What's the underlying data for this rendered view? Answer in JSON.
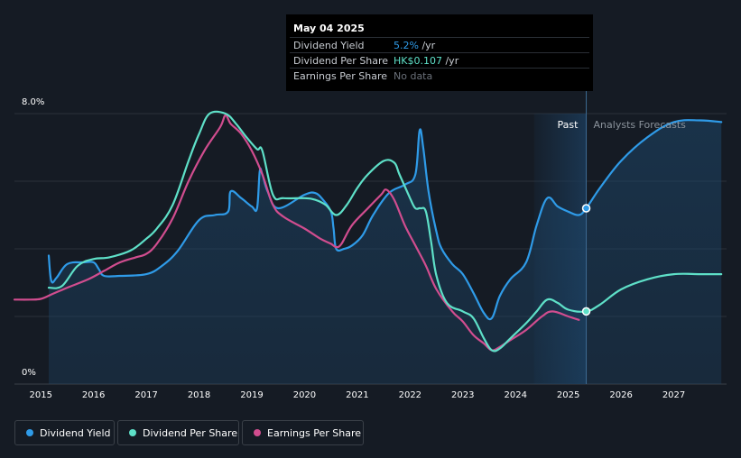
{
  "tooltip": {
    "date": "May 04 2025",
    "rows": [
      {
        "label": "Dividend Yield",
        "value": "5.2%",
        "unit": " /yr",
        "color": "#2f9be8"
      },
      {
        "label": "Dividend Per Share",
        "value": "HK$0.107",
        "unit": " /yr",
        "color": "#5ee0c8"
      },
      {
        "label": "Earnings Per Share",
        "value": "No data",
        "unit": "",
        "color": "#6b717a"
      }
    ]
  },
  "regions": {
    "past": "Past",
    "forecast": "Analysts Forecasts"
  },
  "legend": [
    {
      "label": "Dividend Yield",
      "color": "#2f9be8"
    },
    {
      "label": "Dividend Per Share",
      "color": "#5ee0c8"
    },
    {
      "label": "Earnings Per Share",
      "color": "#d14d8f"
    }
  ],
  "chart_data": {
    "type": "line",
    "ylim": [
      0,
      8.0
    ],
    "y_tick_labels": [
      "8.0%",
      "0%"
    ],
    "x_tick_labels": [
      "2015",
      "2016",
      "2017",
      "2018",
      "2019",
      "2020",
      "2021",
      "2022",
      "2023",
      "2024",
      "2025",
      "2026",
      "2027"
    ],
    "xlim": [
      2014.5,
      2028.0
    ],
    "past_forecast_boundary": 2025.34,
    "past_shade_start": 2024.35,
    "series": [
      {
        "name": "Dividend Yield",
        "color": "#2f9be8",
        "area": true,
        "x": [
          2015.15,
          2015.2,
          2015.3,
          2015.5,
          2015.8,
          2016.0,
          2016.1,
          2016.2,
          2016.5,
          2017.0,
          2017.3,
          2017.6,
          2018.0,
          2018.3,
          2018.55,
          2018.6,
          2018.8,
          2019.0,
          2019.1,
          2019.15,
          2019.2,
          2019.3,
          2019.5,
          2020.0,
          2020.2,
          2020.35,
          2020.5,
          2020.55,
          2020.6,
          2020.75,
          2020.9,
          2021.1,
          2021.3,
          2021.6,
          2021.9,
          2022.1,
          2022.18,
          2022.25,
          2022.35,
          2022.5,
          2022.6,
          2022.8,
          2023.0,
          2023.2,
          2023.4,
          2023.55,
          2023.7,
          2023.9,
          2024.2,
          2024.4,
          2024.6,
          2024.8,
          2025.0,
          2025.2,
          2025.34,
          2025.6,
          2026.0,
          2026.5,
          2027.0,
          2027.5,
          2027.9
        ],
        "y": [
          3.8,
          3.05,
          3.15,
          3.55,
          3.6,
          3.6,
          3.4,
          3.2,
          3.2,
          3.25,
          3.5,
          3.95,
          4.85,
          5.0,
          5.1,
          5.7,
          5.5,
          5.25,
          5.2,
          6.3,
          6.2,
          5.7,
          5.2,
          5.6,
          5.65,
          5.45,
          5.1,
          4.6,
          4.0,
          4.0,
          4.1,
          4.4,
          5.0,
          5.65,
          5.9,
          6.2,
          7.5,
          7.0,
          5.7,
          4.5,
          4.0,
          3.55,
          3.25,
          2.7,
          2.1,
          1.95,
          2.6,
          3.1,
          3.6,
          4.7,
          5.5,
          5.25,
          5.1,
          5.0,
          5.2,
          5.8,
          6.6,
          7.3,
          7.75,
          7.8,
          7.75
        ]
      },
      {
        "name": "Dividend Per Share",
        "color": "#5ee0c8",
        "area": false,
        "x": [
          2015.15,
          2015.4,
          2015.7,
          2016.0,
          2016.3,
          2016.7,
          2017.0,
          2017.2,
          2017.5,
          2017.8,
          2018.0,
          2018.2,
          2018.5,
          2018.7,
          2018.9,
          2019.1,
          2019.2,
          2019.4,
          2019.6,
          2020.0,
          2020.2,
          2020.4,
          2020.6,
          2020.8,
          2021.0,
          2021.2,
          2021.5,
          2021.7,
          2021.8,
          2022.0,
          2022.1,
          2022.2,
          2022.3,
          2022.4,
          2022.5,
          2022.7,
          2023.0,
          2023.2,
          2023.4,
          2023.55,
          2023.7,
          2023.9,
          2024.2,
          2024.4,
          2024.6,
          2024.8,
          2025.0,
          2025.34,
          2025.6,
          2026.0,
          2026.5,
          2027.0,
          2027.5,
          2027.9
        ],
        "y": [
          2.85,
          2.9,
          3.5,
          3.7,
          3.75,
          3.95,
          4.3,
          4.6,
          5.3,
          6.6,
          7.4,
          8.0,
          8.0,
          7.7,
          7.3,
          6.95,
          6.9,
          5.6,
          5.5,
          5.5,
          5.45,
          5.3,
          5.0,
          5.3,
          5.8,
          6.2,
          6.6,
          6.55,
          6.2,
          5.5,
          5.2,
          5.2,
          5.1,
          4.2,
          3.2,
          2.4,
          2.15,
          1.95,
          1.35,
          1.0,
          1.05,
          1.35,
          1.8,
          2.15,
          2.5,
          2.4,
          2.2,
          2.15,
          2.35,
          2.8,
          3.1,
          3.25,
          3.25,
          3.25
        ]
      },
      {
        "name": "Earnings Per Share",
        "color": "#d14d8f",
        "area": false,
        "x": [
          2014.5,
          2014.8,
          2015.0,
          2015.2,
          2015.5,
          2015.9,
          2016.2,
          2016.5,
          2016.8,
          2017.0,
          2017.2,
          2017.5,
          2017.8,
          2018.1,
          2018.4,
          2018.5,
          2018.6,
          2018.8,
          2019.0,
          2019.2,
          2019.4,
          2019.6,
          2020.0,
          2020.3,
          2020.5,
          2020.6,
          2020.7,
          2020.9,
          2021.2,
          2021.45,
          2021.55,
          2021.7,
          2021.9,
          2022.1,
          2022.3,
          2022.5,
          2022.8,
          2023.0,
          2023.2,
          2023.4,
          2023.55,
          2023.7,
          2023.9,
          2024.2,
          2024.5,
          2024.7,
          2025.0,
          2025.2
        ],
        "y": [
          2.5,
          2.5,
          2.52,
          2.65,
          2.85,
          3.1,
          3.35,
          3.6,
          3.75,
          3.85,
          4.15,
          4.9,
          6.0,
          6.9,
          7.6,
          7.95,
          7.7,
          7.4,
          6.9,
          6.2,
          5.3,
          4.95,
          4.6,
          4.3,
          4.15,
          4.05,
          4.15,
          4.7,
          5.2,
          5.6,
          5.75,
          5.45,
          4.7,
          4.1,
          3.5,
          2.8,
          2.15,
          1.85,
          1.45,
          1.2,
          1.0,
          1.1,
          1.3,
          1.6,
          2.0,
          2.15,
          2.0,
          1.9
        ]
      }
    ],
    "markers": [
      {
        "series": "Dividend Yield",
        "x": 2025.34,
        "y": 5.2
      },
      {
        "series": "Dividend Per Share",
        "x": 2025.34,
        "y": 2.15
      }
    ]
  }
}
